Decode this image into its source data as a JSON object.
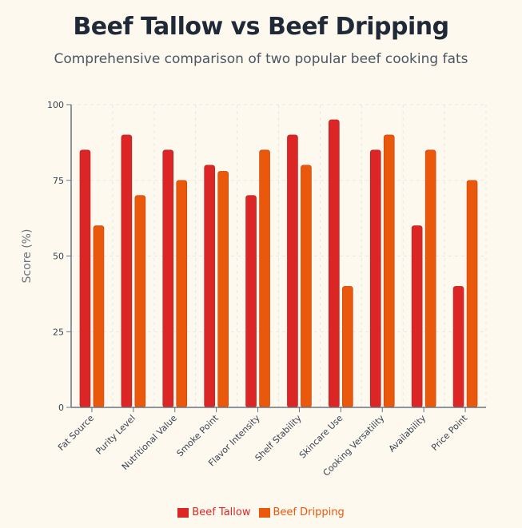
{
  "header": {
    "title": "Beef Tallow vs Beef Dripping",
    "subtitle": "Comprehensive comparison of two popular beef cooking fats"
  },
  "chart_data": {
    "type": "bar",
    "title": "Beef Tallow vs Beef Dripping",
    "subtitle": "Comprehensive comparison of two popular beef cooking fats",
    "xlabel": "",
    "ylabel": "Score (%)",
    "ylim": [
      0,
      100
    ],
    "yticks": [
      0,
      25,
      50,
      75,
      100
    ],
    "grid": true,
    "legend_position": "bottom-center",
    "categories": [
      "Fat Source",
      "Purity Level",
      "Nutritional Value",
      "Smoke Point",
      "Flavor Intensity",
      "Shelf Stability",
      "Skincare Use",
      "Cooking Versatility",
      "Availability",
      "Price Point"
    ],
    "series": [
      {
        "name": "Beef Tallow",
        "color": "#dc2626",
        "values": [
          85,
          90,
          85,
          80,
          70,
          90,
          95,
          85,
          60,
          40
        ]
      },
      {
        "name": "Beef Dripping",
        "color": "#ea580c",
        "values": [
          60,
          70,
          75,
          78,
          85,
          80,
          40,
          90,
          85,
          75
        ]
      }
    ]
  }
}
